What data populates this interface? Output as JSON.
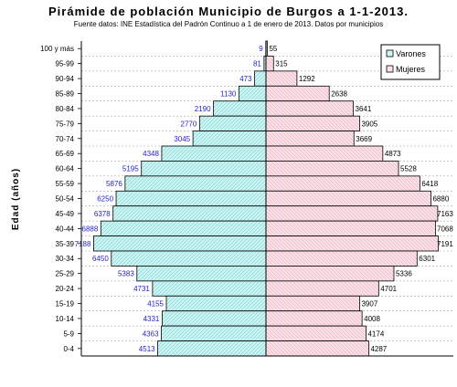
{
  "chart_data": {
    "type": "bar",
    "orientation": "horizontal-pyramid",
    "title": "Pirámide de población Municipio de Burgos a 1-1-2013.",
    "subtitle": "Fuente datos: INE Estadística del Padrón Continuo a 1 de enero de 2013. Datos por municipios",
    "ylabel": "Edad (años)",
    "categories": [
      "100 y más",
      "95-99",
      "90-94",
      "85-89",
      "80-84",
      "75-79",
      "70-74",
      "65-69",
      "60-64",
      "55-59",
      "50-54",
      "45-49",
      "40-44",
      "35-39",
      "30-34",
      "25-29",
      "20-24",
      "15-19",
      "10-14",
      "5-9",
      "0-4"
    ],
    "series": [
      {
        "name": "Varones",
        "color": "#ccf6f6",
        "values": [
          9,
          81,
          473,
          1130,
          2190,
          2770,
          3045,
          4348,
          5195,
          5876,
          6250,
          6378,
          6888,
          7188,
          6450,
          5383,
          4731,
          4155,
          4331,
          4363,
          4513
        ]
      },
      {
        "name": "Mujeres",
        "color": "#fbe3e9",
        "values": [
          55,
          315,
          1292,
          2638,
          3641,
          3905,
          3669,
          4873,
          5528,
          6418,
          6880,
          7163,
          7068,
          7191,
          6301,
          5336,
          4701,
          3907,
          4008,
          4174,
          4287
        ]
      }
    ],
    "xlim": [
      -7700,
      7700
    ],
    "legend_position": "top-right",
    "grid": "horizontal-dashed"
  }
}
